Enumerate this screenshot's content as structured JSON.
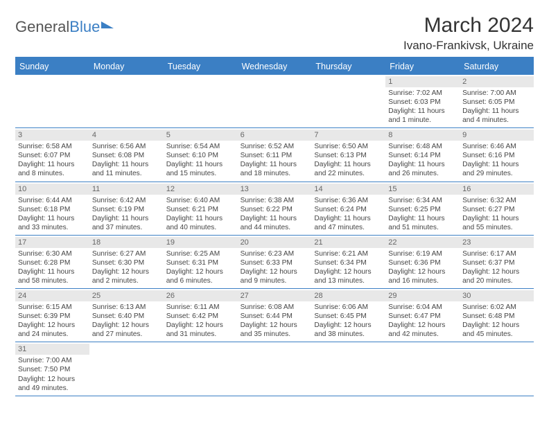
{
  "logo": {
    "part1": "General",
    "part2": "Blue"
  },
  "title": "March 2024",
  "location": "Ivano-Frankivsk, Ukraine",
  "colors": {
    "accent": "#3b7fc4",
    "daybg": "#e8e8e8",
    "text": "#444"
  },
  "dayHeaders": [
    "Sunday",
    "Monday",
    "Tuesday",
    "Wednesday",
    "Thursday",
    "Friday",
    "Saturday"
  ],
  "weeks": [
    [
      null,
      null,
      null,
      null,
      null,
      {
        "n": "1",
        "sr": "Sunrise: 7:02 AM",
        "ss": "Sunset: 6:03 PM",
        "dl": "Daylight: 11 hours and 1 minute."
      },
      {
        "n": "2",
        "sr": "Sunrise: 7:00 AM",
        "ss": "Sunset: 6:05 PM",
        "dl": "Daylight: 11 hours and 4 minutes."
      }
    ],
    [
      {
        "n": "3",
        "sr": "Sunrise: 6:58 AM",
        "ss": "Sunset: 6:07 PM",
        "dl": "Daylight: 11 hours and 8 minutes."
      },
      {
        "n": "4",
        "sr": "Sunrise: 6:56 AM",
        "ss": "Sunset: 6:08 PM",
        "dl": "Daylight: 11 hours and 11 minutes."
      },
      {
        "n": "5",
        "sr": "Sunrise: 6:54 AM",
        "ss": "Sunset: 6:10 PM",
        "dl": "Daylight: 11 hours and 15 minutes."
      },
      {
        "n": "6",
        "sr": "Sunrise: 6:52 AM",
        "ss": "Sunset: 6:11 PM",
        "dl": "Daylight: 11 hours and 18 minutes."
      },
      {
        "n": "7",
        "sr": "Sunrise: 6:50 AM",
        "ss": "Sunset: 6:13 PM",
        "dl": "Daylight: 11 hours and 22 minutes."
      },
      {
        "n": "8",
        "sr": "Sunrise: 6:48 AM",
        "ss": "Sunset: 6:14 PM",
        "dl": "Daylight: 11 hours and 26 minutes."
      },
      {
        "n": "9",
        "sr": "Sunrise: 6:46 AM",
        "ss": "Sunset: 6:16 PM",
        "dl": "Daylight: 11 hours and 29 minutes."
      }
    ],
    [
      {
        "n": "10",
        "sr": "Sunrise: 6:44 AM",
        "ss": "Sunset: 6:18 PM",
        "dl": "Daylight: 11 hours and 33 minutes."
      },
      {
        "n": "11",
        "sr": "Sunrise: 6:42 AM",
        "ss": "Sunset: 6:19 PM",
        "dl": "Daylight: 11 hours and 37 minutes."
      },
      {
        "n": "12",
        "sr": "Sunrise: 6:40 AM",
        "ss": "Sunset: 6:21 PM",
        "dl": "Daylight: 11 hours and 40 minutes."
      },
      {
        "n": "13",
        "sr": "Sunrise: 6:38 AM",
        "ss": "Sunset: 6:22 PM",
        "dl": "Daylight: 11 hours and 44 minutes."
      },
      {
        "n": "14",
        "sr": "Sunrise: 6:36 AM",
        "ss": "Sunset: 6:24 PM",
        "dl": "Daylight: 11 hours and 47 minutes."
      },
      {
        "n": "15",
        "sr": "Sunrise: 6:34 AM",
        "ss": "Sunset: 6:25 PM",
        "dl": "Daylight: 11 hours and 51 minutes."
      },
      {
        "n": "16",
        "sr": "Sunrise: 6:32 AM",
        "ss": "Sunset: 6:27 PM",
        "dl": "Daylight: 11 hours and 55 minutes."
      }
    ],
    [
      {
        "n": "17",
        "sr": "Sunrise: 6:30 AM",
        "ss": "Sunset: 6:28 PM",
        "dl": "Daylight: 11 hours and 58 minutes."
      },
      {
        "n": "18",
        "sr": "Sunrise: 6:27 AM",
        "ss": "Sunset: 6:30 PM",
        "dl": "Daylight: 12 hours and 2 minutes."
      },
      {
        "n": "19",
        "sr": "Sunrise: 6:25 AM",
        "ss": "Sunset: 6:31 PM",
        "dl": "Daylight: 12 hours and 6 minutes."
      },
      {
        "n": "20",
        "sr": "Sunrise: 6:23 AM",
        "ss": "Sunset: 6:33 PM",
        "dl": "Daylight: 12 hours and 9 minutes."
      },
      {
        "n": "21",
        "sr": "Sunrise: 6:21 AM",
        "ss": "Sunset: 6:34 PM",
        "dl": "Daylight: 12 hours and 13 minutes."
      },
      {
        "n": "22",
        "sr": "Sunrise: 6:19 AM",
        "ss": "Sunset: 6:36 PM",
        "dl": "Daylight: 12 hours and 16 minutes."
      },
      {
        "n": "23",
        "sr": "Sunrise: 6:17 AM",
        "ss": "Sunset: 6:37 PM",
        "dl": "Daylight: 12 hours and 20 minutes."
      }
    ],
    [
      {
        "n": "24",
        "sr": "Sunrise: 6:15 AM",
        "ss": "Sunset: 6:39 PM",
        "dl": "Daylight: 12 hours and 24 minutes."
      },
      {
        "n": "25",
        "sr": "Sunrise: 6:13 AM",
        "ss": "Sunset: 6:40 PM",
        "dl": "Daylight: 12 hours and 27 minutes."
      },
      {
        "n": "26",
        "sr": "Sunrise: 6:11 AM",
        "ss": "Sunset: 6:42 PM",
        "dl": "Daylight: 12 hours and 31 minutes."
      },
      {
        "n": "27",
        "sr": "Sunrise: 6:08 AM",
        "ss": "Sunset: 6:44 PM",
        "dl": "Daylight: 12 hours and 35 minutes."
      },
      {
        "n": "28",
        "sr": "Sunrise: 6:06 AM",
        "ss": "Sunset: 6:45 PM",
        "dl": "Daylight: 12 hours and 38 minutes."
      },
      {
        "n": "29",
        "sr": "Sunrise: 6:04 AM",
        "ss": "Sunset: 6:47 PM",
        "dl": "Daylight: 12 hours and 42 minutes."
      },
      {
        "n": "30",
        "sr": "Sunrise: 6:02 AM",
        "ss": "Sunset: 6:48 PM",
        "dl": "Daylight: 12 hours and 45 minutes."
      }
    ],
    [
      {
        "n": "31",
        "sr": "Sunrise: 7:00 AM",
        "ss": "Sunset: 7:50 PM",
        "dl": "Daylight: 12 hours and 49 minutes."
      },
      null,
      null,
      null,
      null,
      null,
      null
    ]
  ]
}
